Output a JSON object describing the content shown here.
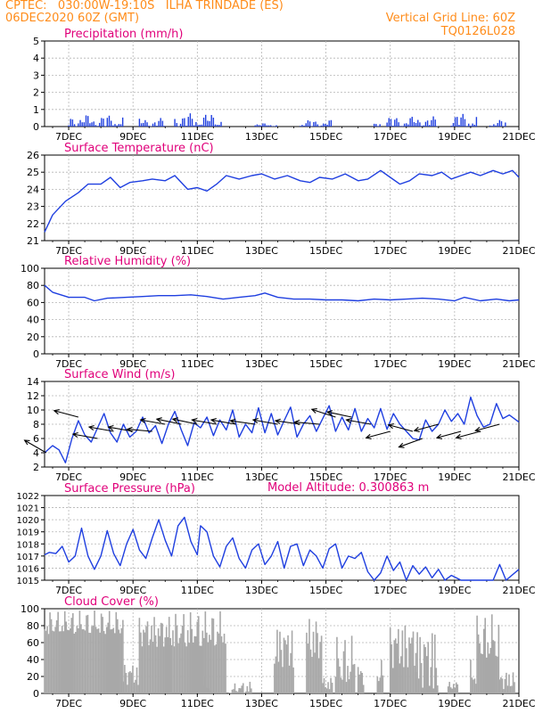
{
  "header": {
    "line1_left": "CPTEC:   030:00W-19:10S   ILHA TRINDADE (ES)",
    "line2_left": "06DEC2020 60Z (GMT)",
    "line2_right": "Vertical Grid Line: 60Z",
    "line3_right": "TQ0126L028",
    "model_altitude": "Model Altitude: 0.300863 m"
  },
  "colors": {
    "header": "#ff8c1a",
    "title": "#e0007a",
    "series": "#1f3fe0",
    "cloud": "#a8a8a8",
    "grid": "#b5b5b5",
    "axis": "#000000"
  },
  "chart_data": [
    {
      "type": "bar",
      "title": "Precipitation  (mm/h)",
      "ylim": [
        0,
        5
      ],
      "yticks": [
        "0",
        "1",
        "2",
        "3",
        "4",
        "5"
      ],
      "xticks": [
        "7DEC",
        "9DEC",
        "11DEC",
        "13DEC",
        "15DEC",
        "17DEC",
        "19DEC",
        "21DEC"
      ],
      "x_range_days": [
        6.25,
        21
      ],
      "spans": [
        {
          "from": 7.0,
          "to": 8.7,
          "max": 0.7
        },
        {
          "from": 9.2,
          "to": 10.0,
          "max": 0.5
        },
        {
          "from": 10.3,
          "to": 11.8,
          "max": 0.8
        },
        {
          "from": 12.8,
          "to": 13.5,
          "max": 0.2
        },
        {
          "from": 14.2,
          "to": 15.2,
          "max": 0.4
        },
        {
          "from": 16.5,
          "to": 16.7,
          "max": 0.2
        },
        {
          "from": 16.9,
          "to": 18.5,
          "max": 0.6
        },
        {
          "from": 18.9,
          "to": 19.7,
          "max": 0.8
        },
        {
          "from": 20.1,
          "to": 20.6,
          "max": 0.4
        }
      ]
    },
    {
      "type": "line",
      "title": "Surface Temperature (nC)",
      "ylim": [
        21,
        26
      ],
      "yticks": [
        "21",
        "22",
        "23",
        "24",
        "25",
        "26"
      ],
      "xticks": [
        "7DEC",
        "9DEC",
        "11DEC",
        "13DEC",
        "15DEC",
        "17DEC",
        "19DEC",
        "21DEC"
      ],
      "x_range_days": [
        6.25,
        21
      ],
      "points": [
        [
          6.25,
          21.5
        ],
        [
          6.5,
          22.5
        ],
        [
          6.9,
          23.3
        ],
        [
          7.3,
          23.8
        ],
        [
          7.6,
          24.3
        ],
        [
          8.0,
          24.3
        ],
        [
          8.3,
          24.7
        ],
        [
          8.6,
          24.1
        ],
        [
          8.9,
          24.4
        ],
        [
          9.3,
          24.5
        ],
        [
          9.6,
          24.6
        ],
        [
          10.0,
          24.5
        ],
        [
          10.3,
          24.8
        ],
        [
          10.7,
          24.0
        ],
        [
          11.0,
          24.1
        ],
        [
          11.3,
          23.9
        ],
        [
          11.6,
          24.3
        ],
        [
          11.9,
          24.8
        ],
        [
          12.3,
          24.6
        ],
        [
          12.7,
          24.8
        ],
        [
          13.0,
          24.9
        ],
        [
          13.4,
          24.6
        ],
        [
          13.8,
          24.8
        ],
        [
          14.2,
          24.5
        ],
        [
          14.5,
          24.4
        ],
        [
          14.8,
          24.7
        ],
        [
          15.2,
          24.6
        ],
        [
          15.6,
          24.9
        ],
        [
          16.0,
          24.5
        ],
        [
          16.3,
          24.6
        ],
        [
          16.7,
          25.1
        ],
        [
          17.0,
          24.7
        ],
        [
          17.3,
          24.3
        ],
        [
          17.6,
          24.5
        ],
        [
          17.9,
          24.9
        ],
        [
          18.3,
          24.8
        ],
        [
          18.6,
          25.0
        ],
        [
          18.9,
          24.6
        ],
        [
          19.2,
          24.8
        ],
        [
          19.5,
          25.0
        ],
        [
          19.8,
          24.8
        ],
        [
          20.2,
          25.1
        ],
        [
          20.5,
          24.9
        ],
        [
          20.8,
          25.1
        ],
        [
          21.0,
          24.7
        ]
      ]
    },
    {
      "type": "line",
      "title": "Relative Humidity  (%)",
      "ylim": [
        0,
        100
      ],
      "yticks": [
        "0",
        "20",
        "40",
        "60",
        "80",
        "100"
      ],
      "xticks": [
        "7DEC",
        "9DEC",
        "11DEC",
        "13DEC",
        "15DEC",
        "17DEC",
        "19DEC",
        "21DEC"
      ],
      "x_range_days": [
        6.25,
        21
      ],
      "points": [
        [
          6.25,
          80
        ],
        [
          6.5,
          72
        ],
        [
          7.0,
          66
        ],
        [
          7.5,
          66
        ],
        [
          7.8,
          62
        ],
        [
          8.2,
          65
        ],
        [
          8.8,
          66
        ],
        [
          9.3,
          67
        ],
        [
          9.8,
          68
        ],
        [
          10.3,
          68
        ],
        [
          10.8,
          69
        ],
        [
          11.3,
          67
        ],
        [
          11.8,
          64
        ],
        [
          12.3,
          66
        ],
        [
          12.8,
          68
        ],
        [
          13.1,
          71
        ],
        [
          13.5,
          66
        ],
        [
          14.0,
          64
        ],
        [
          14.5,
          64
        ],
        [
          15.0,
          63
        ],
        [
          15.5,
          63
        ],
        [
          16.0,
          62
        ],
        [
          16.5,
          64
        ],
        [
          17.0,
          63
        ],
        [
          17.5,
          64
        ],
        [
          18.0,
          65
        ],
        [
          18.5,
          64
        ],
        [
          19.0,
          62
        ],
        [
          19.3,
          66
        ],
        [
          19.8,
          62
        ],
        [
          20.3,
          64
        ],
        [
          20.7,
          62
        ],
        [
          21.0,
          63
        ]
      ]
    },
    {
      "type": "line",
      "title": "Surface Wind  (m/s)",
      "ylim": [
        2,
        14
      ],
      "yticks": [
        "2",
        "4",
        "6",
        "8",
        "10",
        "12",
        "14"
      ],
      "xticks": [
        "7DEC",
        "9DEC",
        "11DEC",
        "13DEC",
        "15DEC",
        "17DEC",
        "19DEC",
        "21DEC"
      ],
      "x_range_days": [
        6.25,
        21
      ],
      "points": [
        [
          6.25,
          4
        ],
        [
          6.5,
          5
        ],
        [
          6.7,
          4.4
        ],
        [
          6.9,
          2.6
        ],
        [
          7.1,
          6.0
        ],
        [
          7.3,
          8.5
        ],
        [
          7.5,
          6.5
        ],
        [
          7.7,
          5.5
        ],
        [
          7.9,
          7.5
        ],
        [
          8.1,
          9.5
        ],
        [
          8.3,
          6.8
        ],
        [
          8.5,
          5.5
        ],
        [
          8.7,
          8.0
        ],
        [
          8.9,
          6.2
        ],
        [
          9.1,
          7.0
        ],
        [
          9.3,
          9.0
        ],
        [
          9.5,
          6.8
        ],
        [
          9.7,
          7.8
        ],
        [
          9.9,
          5.3
        ],
        [
          10.1,
          8.0
        ],
        [
          10.3,
          9.8
        ],
        [
          10.5,
          7.2
        ],
        [
          10.7,
          5.0
        ],
        [
          10.9,
          8.2
        ],
        [
          11.1,
          7.5
        ],
        [
          11.3,
          9.0
        ],
        [
          11.5,
          6.4
        ],
        [
          11.7,
          8.6
        ],
        [
          11.9,
          7.2
        ],
        [
          12.1,
          10.0
        ],
        [
          12.3,
          6.2
        ],
        [
          12.5,
          8.0
        ],
        [
          12.7,
          6.8
        ],
        [
          12.9,
          10.3
        ],
        [
          13.1,
          6.8
        ],
        [
          13.3,
          9.5
        ],
        [
          13.5,
          6.5
        ],
        [
          13.7,
          8.5
        ],
        [
          13.9,
          10.4
        ],
        [
          14.1,
          6.2
        ],
        [
          14.3,
          8.0
        ],
        [
          14.5,
          9.2
        ],
        [
          14.7,
          7.0
        ],
        [
          14.9,
          8.8
        ],
        [
          15.1,
          10.6
        ],
        [
          15.3,
          7.0
        ],
        [
          15.5,
          9.0
        ],
        [
          15.7,
          7.2
        ],
        [
          15.9,
          10.2
        ],
        [
          16.1,
          7.0
        ],
        [
          16.3,
          8.8
        ],
        [
          16.5,
          7.5
        ],
        [
          16.7,
          10.2
        ],
        [
          16.9,
          7.3
        ],
        [
          17.1,
          9.5
        ],
        [
          17.3,
          8.0
        ],
        [
          17.5,
          7.0
        ],
        [
          17.7,
          6.0
        ],
        [
          17.9,
          5.8
        ],
        [
          18.1,
          8.6
        ],
        [
          18.3,
          7.0
        ],
        [
          18.5,
          8.0
        ],
        [
          18.7,
          10.0
        ],
        [
          18.9,
          8.4
        ],
        [
          19.1,
          9.5
        ],
        [
          19.3,
          8.0
        ],
        [
          19.5,
          11.8
        ],
        [
          19.7,
          9.2
        ],
        [
          19.9,
          7.6
        ],
        [
          20.1,
          8.0
        ],
        [
          20.3,
          10.9
        ],
        [
          20.5,
          8.8
        ],
        [
          20.7,
          9.3
        ],
        [
          21.0,
          8.3
        ]
      ],
      "barbs": [
        {
          "day": 6.3,
          "speed": 4,
          "to_deg": -30
        },
        {
          "day": 7.3,
          "speed": 9,
          "to_deg": -15
        },
        {
          "day": 7.9,
          "speed": 6,
          "to_deg": -10
        },
        {
          "day": 8.4,
          "speed": 7,
          "to_deg": -10
        },
        {
          "day": 9.0,
          "speed": 7,
          "to_deg": -10
        },
        {
          "day": 9.6,
          "speed": 7,
          "to_deg": -5
        },
        {
          "day": 10.0,
          "speed": 8,
          "to_deg": -10
        },
        {
          "day": 10.5,
          "speed": 8,
          "to_deg": -12
        },
        {
          "day": 11.0,
          "speed": 8,
          "to_deg": -12
        },
        {
          "day": 11.6,
          "speed": 8,
          "to_deg": -10
        },
        {
          "day": 12.2,
          "speed": 8,
          "to_deg": -10
        },
        {
          "day": 12.8,
          "speed": 8,
          "to_deg": -8
        },
        {
          "day": 13.5,
          "speed": 8,
          "to_deg": -10
        },
        {
          "day": 14.2,
          "speed": 8,
          "to_deg": -8
        },
        {
          "day": 14.8,
          "speed": 8,
          "to_deg": -5
        },
        {
          "day": 15.3,
          "speed": 9,
          "to_deg": -18
        },
        {
          "day": 15.8,
          "speed": 9,
          "to_deg": -12
        },
        {
          "day": 16.4,
          "speed": 8,
          "to_deg": -10
        },
        {
          "day": 17.0,
          "speed": 7,
          "to_deg": 15
        },
        {
          "day": 17.7,
          "speed": 7,
          "to_deg": -15
        },
        {
          "day": 18.0,
          "speed": 6,
          "to_deg": 20
        },
        {
          "day": 18.5,
          "speed": 8,
          "to_deg": 15
        },
        {
          "day": 19.2,
          "speed": 7,
          "to_deg": 15
        },
        {
          "day": 19.8,
          "speed": 7,
          "to_deg": 15
        },
        {
          "day": 20.4,
          "speed": 8,
          "to_deg": 15
        }
      ]
    },
    {
      "type": "line",
      "title": "Surface Pressure  (hPa)",
      "ylim": [
        1015,
        1022
      ],
      "yticks": [
        "1015",
        "1016",
        "1017",
        "1018",
        "1019",
        "1020",
        "1021",
        "1022"
      ],
      "xticks": [
        "7DEC",
        "9DEC",
        "11DEC",
        "13DEC",
        "15DEC",
        "17DEC",
        "19DEC",
        "21DEC"
      ],
      "x_range_days": [
        6.25,
        21
      ],
      "points": [
        [
          6.25,
          1017.1
        ],
        [
          6.4,
          1017.3
        ],
        [
          6.6,
          1017.2
        ],
        [
          6.8,
          1017.8
        ],
        [
          7.0,
          1016.5
        ],
        [
          7.2,
          1017.0
        ],
        [
          7.4,
          1019.3
        ],
        [
          7.6,
          1017.0
        ],
        [
          7.8,
          1015.9
        ],
        [
          8.0,
          1017.0
        ],
        [
          8.2,
          1019.1
        ],
        [
          8.4,
          1017.2
        ],
        [
          8.6,
          1016.2
        ],
        [
          8.8,
          1018.0
        ],
        [
          9.0,
          1019.2
        ],
        [
          9.2,
          1017.5
        ],
        [
          9.4,
          1016.8
        ],
        [
          9.6,
          1018.5
        ],
        [
          9.8,
          1020.0
        ],
        [
          10.0,
          1018.3
        ],
        [
          10.2,
          1017.0
        ],
        [
          10.4,
          1019.5
        ],
        [
          10.6,
          1020.2
        ],
        [
          10.8,
          1018.2
        ],
        [
          11.0,
          1017.1
        ],
        [
          11.1,
          1019.5
        ],
        [
          11.3,
          1019.0
        ],
        [
          11.5,
          1017.0
        ],
        [
          11.7,
          1016.1
        ],
        [
          11.9,
          1017.8
        ],
        [
          12.1,
          1018.5
        ],
        [
          12.3,
          1016.8
        ],
        [
          12.5,
          1016.0
        ],
        [
          12.7,
          1017.5
        ],
        [
          12.9,
          1018.0
        ],
        [
          13.1,
          1016.3
        ],
        [
          13.3,
          1017.0
        ],
        [
          13.5,
          1018.2
        ],
        [
          13.7,
          1016.0
        ],
        [
          13.9,
          1017.8
        ],
        [
          14.1,
          1018.0
        ],
        [
          14.3,
          1016.2
        ],
        [
          14.5,
          1017.5
        ],
        [
          14.7,
          1017.0
        ],
        [
          14.9,
          1016.0
        ],
        [
          15.1,
          1017.6
        ],
        [
          15.3,
          1018.0
        ],
        [
          15.5,
          1016.0
        ],
        [
          15.7,
          1017.0
        ],
        [
          15.9,
          1016.8
        ],
        [
          16.1,
          1017.3
        ],
        [
          16.3,
          1015.7
        ],
        [
          16.5,
          1015.0
        ],
        [
          16.7,
          1015.6
        ],
        [
          16.9,
          1017.0
        ],
        [
          17.1,
          1015.8
        ],
        [
          17.3,
          1016.5
        ],
        [
          17.5,
          1015.0
        ],
        [
          17.7,
          1016.2
        ],
        [
          17.9,
          1015.5
        ],
        [
          18.1,
          1016.1
        ],
        [
          18.3,
          1015.2
        ],
        [
          18.5,
          1015.9
        ],
        [
          18.7,
          1015.0
        ],
        [
          18.9,
          1015.4
        ],
        [
          19.2,
          1015.0
        ],
        [
          20.2,
          1015.0
        ],
        [
          20.4,
          1016.3
        ],
        [
          20.6,
          1015.0
        ],
        [
          21.0,
          1015.9
        ]
      ]
    },
    {
      "type": "bar",
      "title": "Cloud Cover  (%)",
      "ylim": [
        0,
        100
      ],
      "yticks": [
        "0",
        "20",
        "40",
        "60",
        "80",
        "100"
      ],
      "xticks": [
        "7DEC",
        "9DEC",
        "11DEC",
        "13DEC",
        "15DEC",
        "17DEC",
        "19DEC",
        "21DEC"
      ],
      "x_range_days": [
        6.25,
        21
      ],
      "spans": [
        {
          "from": 6.25,
          "to": 8.7,
          "min": 70,
          "max": 98
        },
        {
          "from": 8.7,
          "to": 9.2,
          "min": 10,
          "max": 40
        },
        {
          "from": 9.2,
          "to": 10.2,
          "min": 55,
          "max": 95
        },
        {
          "from": 10.2,
          "to": 11.9,
          "min": 55,
          "max": 98
        },
        {
          "from": 11.2,
          "to": 11.45,
          "min": 2,
          "max": 20
        },
        {
          "from": 12.0,
          "to": 12.3,
          "min": 0,
          "max": 12
        },
        {
          "from": 12.3,
          "to": 12.7,
          "min": 0,
          "max": 15
        },
        {
          "from": 13.4,
          "to": 14.0,
          "min": 30,
          "max": 88
        },
        {
          "from": 14.4,
          "to": 14.9,
          "min": 40,
          "max": 95
        },
        {
          "from": 14.9,
          "to": 15.2,
          "min": 5,
          "max": 20
        },
        {
          "from": 15.3,
          "to": 15.9,
          "min": 10,
          "max": 70
        },
        {
          "from": 16.0,
          "to": 16.2,
          "min": 10,
          "max": 38
        },
        {
          "from": 16.6,
          "to": 16.8,
          "min": 10,
          "max": 40
        },
        {
          "from": 17.0,
          "to": 17.8,
          "min": 30,
          "max": 92
        },
        {
          "from": 17.8,
          "to": 18.5,
          "min": 5,
          "max": 90
        },
        {
          "from": 18.8,
          "to": 19.1,
          "min": 5,
          "max": 15
        },
        {
          "from": 19.5,
          "to": 19.7,
          "min": 10,
          "max": 40
        },
        {
          "from": 19.7,
          "to": 20.4,
          "min": 40,
          "max": 95
        },
        {
          "from": 20.4,
          "to": 20.9,
          "min": 5,
          "max": 30
        }
      ]
    }
  ]
}
